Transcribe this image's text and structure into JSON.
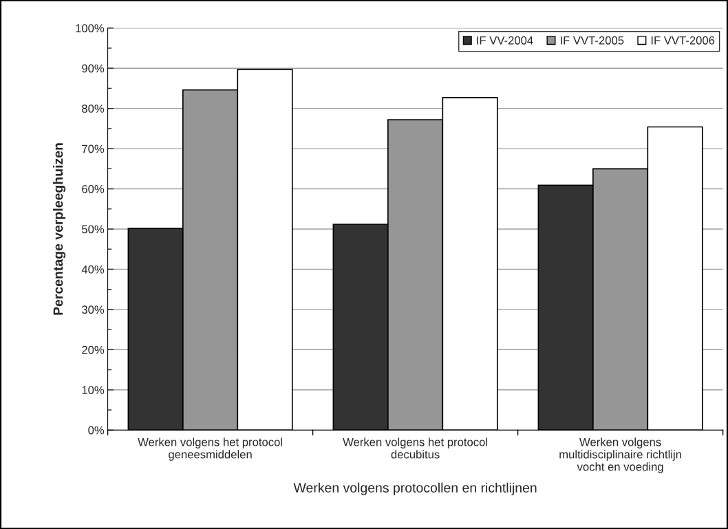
{
  "chart_data": {
    "type": "bar",
    "xlabel": "Werken volgens protocollen en richtlijnen",
    "ylabel": "Percentage verpleeghuizen",
    "categories": [
      "Werken volgens het protocol\ngeneesmiddelen",
      "Werken volgens het protocol\ndecubitus",
      "Werken volgens\nmultidisciplinaire richtlijn\nvocht en voeding"
    ],
    "series": [
      {
        "name": "IF VV-2004",
        "color": "#333333",
        "values": [
          50.2,
          51.2,
          60.9
        ]
      },
      {
        "name": "IF VVT-2005",
        "color": "#969696",
        "values": [
          84.6,
          77.2,
          65.0
        ]
      },
      {
        "name": "IF VVT-2006",
        "color": "#ffffff",
        "values": [
          89.7,
          82.7,
          75.4
        ]
      }
    ],
    "ylim": [
      0,
      100
    ],
    "yticks": [
      {
        "value": 0,
        "label": "0%"
      },
      {
        "value": 5,
        "label": null
      },
      {
        "value": 10,
        "label": "10%"
      },
      {
        "value": 15,
        "label": null
      },
      {
        "value": 20,
        "label": "20%"
      },
      {
        "value": 25,
        "label": null
      },
      {
        "value": 30,
        "label": "30%"
      },
      {
        "value": 35,
        "label": null
      },
      {
        "value": 40,
        "label": "40%"
      },
      {
        "value": 45,
        "label": null
      },
      {
        "value": 50,
        "label": "50%"
      },
      {
        "value": 55,
        "label": null
      },
      {
        "value": 60,
        "label": "60%"
      },
      {
        "value": 65,
        "label": null
      },
      {
        "value": 70,
        "label": "70%"
      },
      {
        "value": 75,
        "label": null
      },
      {
        "value": 80,
        "label": "80%"
      },
      {
        "value": 85,
        "label": null
      },
      {
        "value": 90,
        "label": "90%"
      },
      {
        "value": 95,
        "label": null
      },
      {
        "value": 100,
        "label": "100%"
      }
    ],
    "grid": "y",
    "legend": "top right"
  }
}
